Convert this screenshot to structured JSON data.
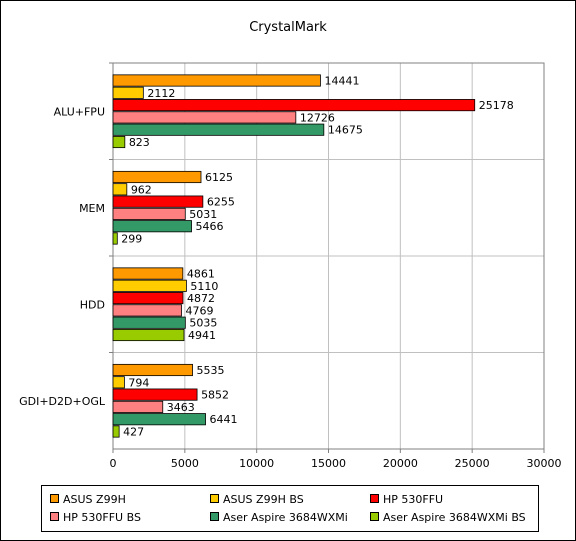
{
  "chart_data": {
    "type": "bar",
    "orientation": "horizontal",
    "title": "CrystalMark",
    "categories": [
      "ALU+FPU",
      "MEM",
      "HDD",
      "GDI+D2D+OGL"
    ],
    "series": [
      {
        "name": "ASUS Z99H",
        "color": "#ff9900",
        "values": [
          14441,
          6125,
          4861,
          5535
        ]
      },
      {
        "name": "ASUS Z99H BS",
        "color": "#ffcc00",
        "values": [
          2112,
          962,
          5110,
          794
        ]
      },
      {
        "name": "HP 530FFU",
        "color": "#ff0000",
        "values": [
          25178,
          6255,
          4872,
          5852
        ]
      },
      {
        "name": "HP 530FFU BS",
        "color": "#ff8080",
        "values": [
          12726,
          5031,
          4769,
          3463
        ]
      },
      {
        "name": "Aser Aspire 3684WXMi",
        "color": "#339966",
        "values": [
          14675,
          5466,
          5035,
          6441
        ]
      },
      {
        "name": "Aser Aspire 3684WXMi BS",
        "color": "#99cc00",
        "values": [
          823,
          299,
          4941,
          427
        ]
      }
    ],
    "xlim": [
      0,
      30000
    ],
    "xticks": [
      0,
      5000,
      10000,
      15000,
      20000,
      25000,
      30000
    ],
    "grid": true,
    "data_labels": true,
    "legend_position": "bottom"
  }
}
